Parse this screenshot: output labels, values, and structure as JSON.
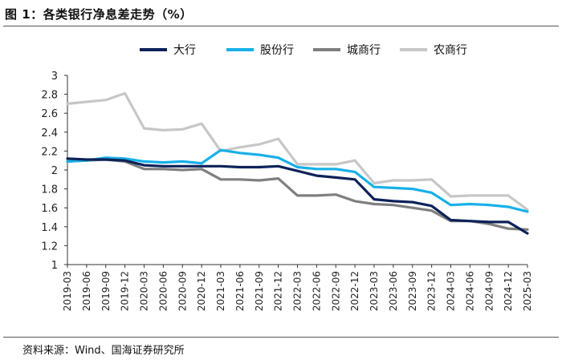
{
  "figure": {
    "title": "图 1：各类银行净息差走势（%）",
    "source": "资料来源：Wind、国海证券研究所"
  },
  "chart_data": {
    "type": "line",
    "title": "",
    "xlabel": "",
    "ylabel": "",
    "ylim": [
      1,
      3
    ],
    "yticks": [
      "1",
      "1.2",
      "1.4",
      "1.6",
      "1.8",
      "2",
      "2.2",
      "2.4",
      "2.6",
      "2.8",
      "3"
    ],
    "grid": false,
    "legend_position": "top",
    "categories": [
      "2019-03",
      "2019-06",
      "2019-09",
      "2019-12",
      "2020-03",
      "2020-06",
      "2020-09",
      "2020-12",
      "2021-03",
      "2021-06",
      "2021-09",
      "2021-12",
      "2022-03",
      "2022-06",
      "2022-09",
      "2022-12",
      "2023-03",
      "2023-06",
      "2023-09",
      "2023-12",
      "2024-03",
      "2024-06",
      "2024-09",
      "2024-12",
      "2025-03"
    ],
    "series": [
      {
        "name": "大行",
        "color": "#0d2259",
        "values": [
          2.12,
          2.11,
          2.11,
          2.1,
          2.05,
          2.04,
          2.04,
          2.04,
          2.04,
          2.03,
          2.03,
          2.04,
          1.99,
          1.94,
          1.92,
          1.9,
          1.69,
          1.67,
          1.66,
          1.62,
          1.47,
          1.46,
          1.45,
          1.45,
          1.33
        ]
      },
      {
        "name": "股份行",
        "color": "#17b0e8",
        "values": [
          2.09,
          2.1,
          2.13,
          2.12,
          2.09,
          2.08,
          2.09,
          2.07,
          2.21,
          2.18,
          2.16,
          2.13,
          2.03,
          2.01,
          2.01,
          1.98,
          1.82,
          1.81,
          1.8,
          1.76,
          1.63,
          1.64,
          1.63,
          1.61,
          1.56
        ]
      },
      {
        "name": "城商行",
        "color": "#7f7f7f",
        "values": [
          2.09,
          2.1,
          2.11,
          2.09,
          2.01,
          2.01,
          2.0,
          2.01,
          1.9,
          1.9,
          1.89,
          1.91,
          1.73,
          1.73,
          1.74,
          1.67,
          1.64,
          1.63,
          1.6,
          1.57,
          1.46,
          1.46,
          1.43,
          1.38,
          1.37
        ]
      },
      {
        "name": "农商行",
        "color": "#c7c7c7",
        "values": [
          2.7,
          2.72,
          2.74,
          2.81,
          2.44,
          2.42,
          2.43,
          2.49,
          2.2,
          2.24,
          2.27,
          2.33,
          2.06,
          2.06,
          2.06,
          2.1,
          1.86,
          1.89,
          1.89,
          1.9,
          1.72,
          1.73,
          1.73,
          1.73,
          1.58
        ]
      }
    ]
  }
}
